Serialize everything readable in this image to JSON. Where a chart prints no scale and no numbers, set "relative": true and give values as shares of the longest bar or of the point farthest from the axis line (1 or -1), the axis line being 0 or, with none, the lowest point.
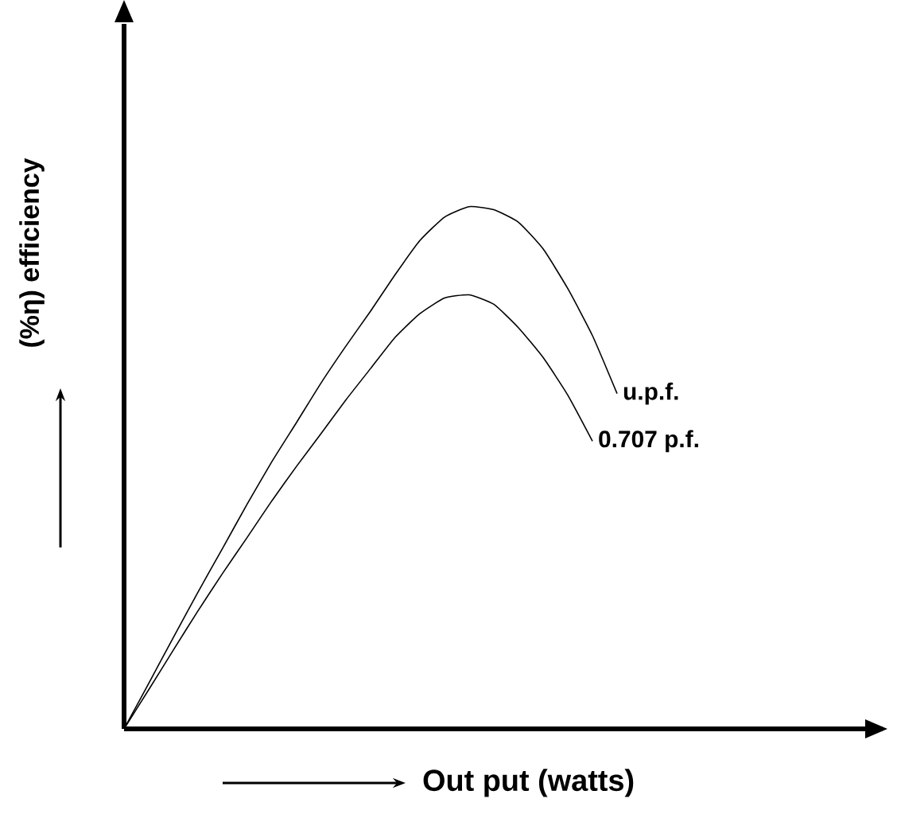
{
  "chart_data": {
    "type": "line",
    "relative": true,
    "xlabel": "Out put (watts)",
    "ylabel": "(%η) efficiency",
    "categories": [
      null,
      null,
      null,
      null,
      null,
      null,
      null,
      null,
      null,
      null,
      null,
      null,
      null,
      null,
      null,
      null,
      null,
      null,
      null,
      null,
      null
    ],
    "series": [
      {
        "name": "u.p.f.",
        "color": "#000000",
        "values": [
          0,
          0.087,
          0.175,
          0.262,
          0.346,
          0.431,
          0.512,
          0.587,
          0.663,
          0.733,
          0.8,
          0.87,
          0.935,
          0.98,
          1,
          0.994,
          0.97,
          0.919,
          0.843,
          0.753,
          0.642
        ]
      },
      {
        "name": "0.707 p.f.",
        "color": "#000000",
        "values": [
          0,
          0.075,
          0.151,
          0.226,
          0.298,
          0.367,
          0.437,
          0.503,
          0.566,
          0.63,
          0.69,
          0.75,
          0.795,
          0.825,
          0.831,
          0.813,
          0.768,
          0.711,
          0.639,
          0.551,
          null
        ]
      }
    ],
    "marker": "none",
    "line_style": "solid"
  }
}
